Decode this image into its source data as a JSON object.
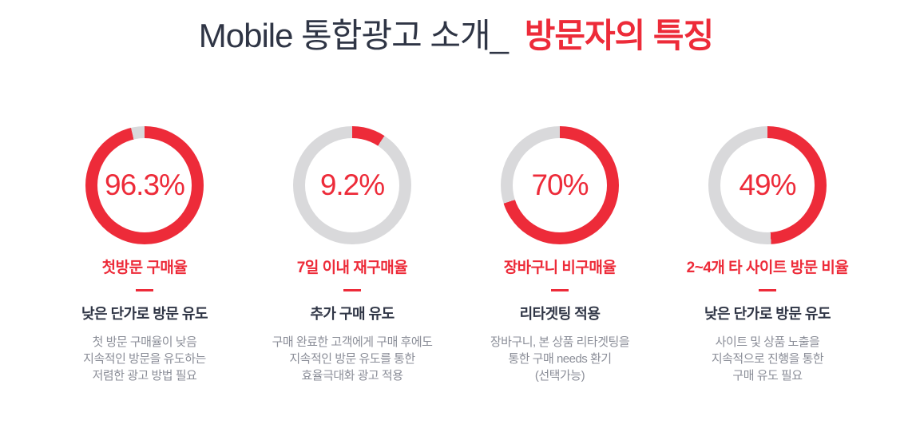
{
  "title": {
    "prefix": "Mobile 통합광고 소개_",
    "highlight": "방문자의 특징"
  },
  "colors": {
    "accent_red": "#ed2b39",
    "ring_gray": "#d9d9db",
    "title_dark": "#2f3545",
    "body_gray": "#8b8e98",
    "background": "#ffffff"
  },
  "chart_data": {
    "type": "pie",
    "subtype": "donut",
    "start_angle": "top",
    "direction": "clockwise",
    "colors": {
      "filled": "#ed2b39",
      "empty": "#d9d9db"
    },
    "charts": [
      {
        "label": "첫방문 구매율",
        "value": 96.3,
        "display": "96.3%",
        "slices": [
          96.3,
          3.7
        ]
      },
      {
        "label": "7일 이내 재구매율",
        "value": 9.2,
        "display": "9.2%",
        "slices": [
          9.2,
          90.8
        ]
      },
      {
        "label": "장바구니 비구매율",
        "value": 70,
        "display": "70%",
        "slices": [
          70,
          30
        ]
      },
      {
        "label": "2~4개 타 사이트 방문 비율",
        "value": 49,
        "display": "49%",
        "slices": [
          49,
          51
        ]
      }
    ]
  },
  "cards": [
    {
      "percent": "96.3%",
      "metric": "첫방문 구매율",
      "headline": "낮은 단가로 방문 유도",
      "description": [
        "첫 방문 구매율이 낮음",
        "지속적인 방문을 유도하는",
        "저렴한 광고 방법 필요"
      ]
    },
    {
      "percent": "9.2%",
      "metric": "7일 이내 재구매율",
      "headline": "추가 구매 유도",
      "description": [
        "구매 완료한 고객에게 구매 후에도",
        "지속적인 방문 유도를 통한",
        "효율극대화 광고 적용"
      ]
    },
    {
      "percent": "70%",
      "metric": "장바구니 비구매율",
      "headline": "리타겟팅 적용",
      "description": [
        "장바구니, 본 상품 리타겟팅을",
        "통한 구매 needs 환기",
        "(선택가능)"
      ]
    },
    {
      "percent": "49%",
      "metric": "2~4개 타 사이트 방문 비율",
      "headline": "낮은 단가로 방문 유도",
      "description": [
        "사이트 및 상품 노출을",
        "지속적으로 진행을 통한",
        "구매 유도 필요"
      ]
    }
  ]
}
